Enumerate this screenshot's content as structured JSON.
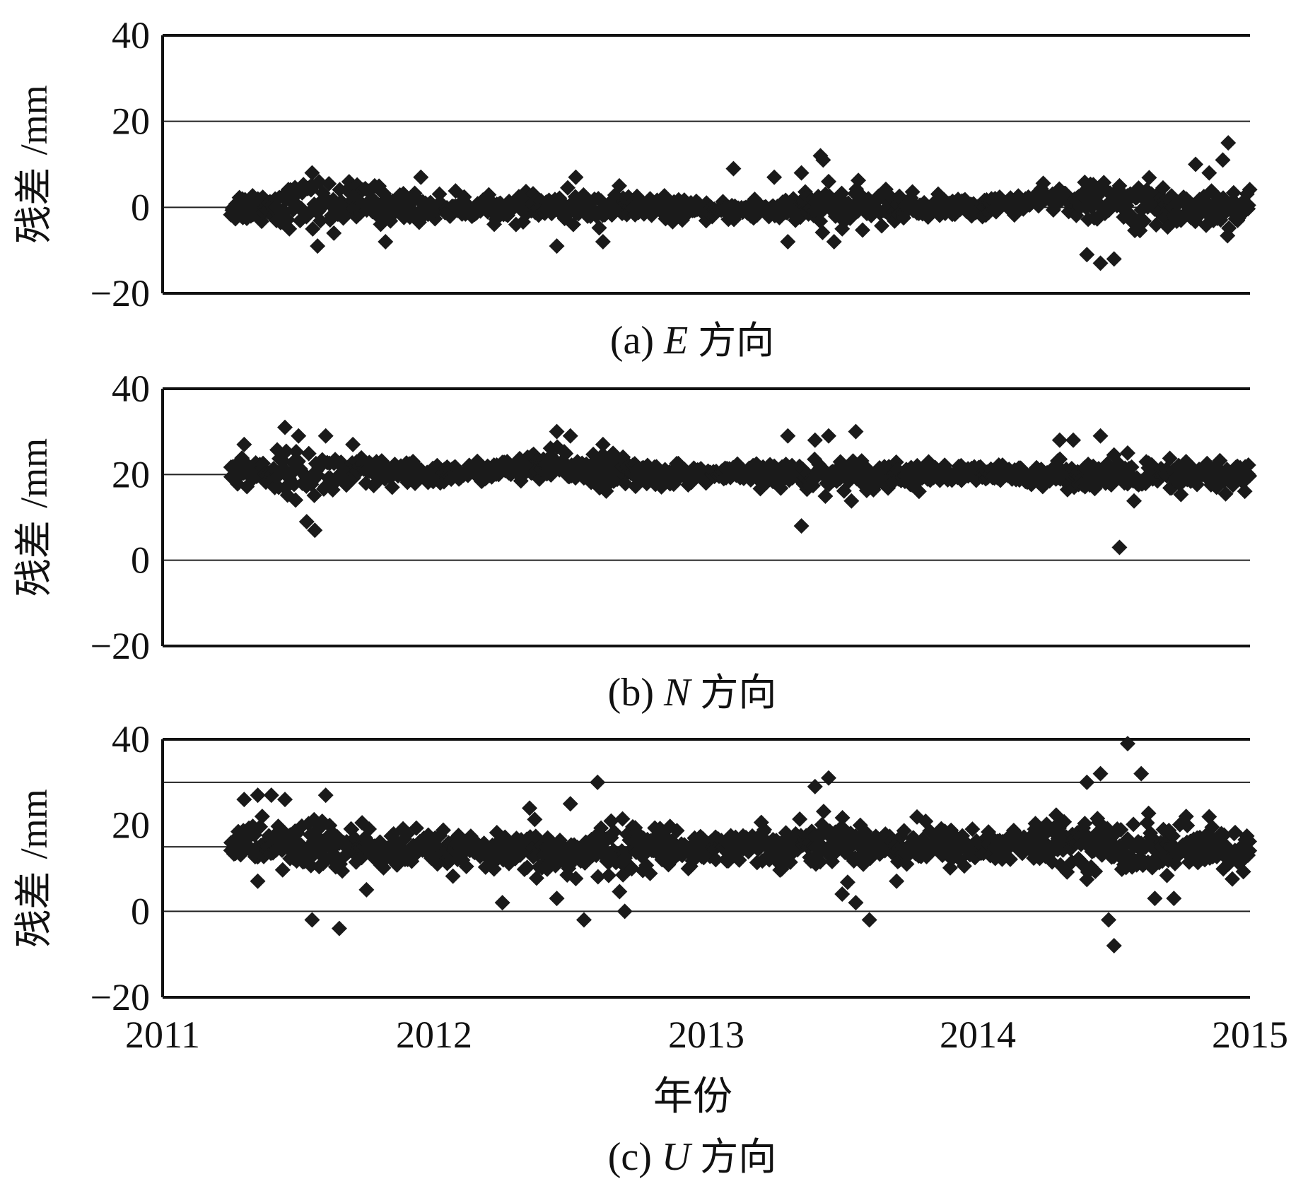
{
  "x_tick_labels": [
    "2011",
    "2012",
    "2013",
    "2014",
    "2015"
  ],
  "x_axis_title": "年份",
  "y_axis_title": "残差",
  "y_axis_unit": "/mm",
  "chart_data": [
    {
      "type": "scatter",
      "panel": "a",
      "caption": {
        "prefix": "(a) ",
        "symbol": "E",
        "suffix": "方向"
      },
      "ylabel": "残差 /mm",
      "xlabel": "",
      "xlim": [
        2011,
        2015
      ],
      "ylim": [
        -20,
        40
      ],
      "y_ticks": [
        "40",
        "20",
        "0",
        "−20"
      ],
      "gridlines_y": [
        0,
        20
      ],
      "marker": "diamond",
      "color": "#1a1a1a",
      "band": {
        "start": 2011.25,
        "end": 2015.0,
        "knots": [
          [
            2011.25,
            0
          ],
          [
            2011.6,
            1
          ],
          [
            2012.0,
            0
          ],
          [
            2012.5,
            0
          ],
          [
            2012.8,
            0
          ],
          [
            2013.0,
            -1
          ],
          [
            2013.5,
            0
          ],
          [
            2014.0,
            0
          ],
          [
            2014.3,
            2
          ],
          [
            2014.6,
            0
          ],
          [
            2015.0,
            0
          ]
        ],
        "spread": [
          [
            2011.25,
            3
          ],
          [
            2011.6,
            5
          ],
          [
            2011.9,
            3
          ],
          [
            2012.2,
            2
          ],
          [
            2012.5,
            3
          ],
          [
            2012.75,
            3
          ],
          [
            2013.0,
            1.5
          ],
          [
            2013.5,
            4
          ],
          [
            2013.9,
            2
          ],
          [
            2014.2,
            2
          ],
          [
            2014.6,
            5
          ],
          [
            2015.0,
            4
          ]
        ],
        "count": 900
      },
      "outliers": [
        [
          2011.55,
          8
        ],
        [
          2011.57,
          -9
        ],
        [
          2011.63,
          -6
        ],
        [
          2011.78,
          5
        ],
        [
          2011.82,
          -8
        ],
        [
          2011.95,
          7
        ],
        [
          2012.3,
          -4
        ],
        [
          2012.45,
          -9
        ],
        [
          2012.52,
          7
        ],
        [
          2012.62,
          -8
        ],
        [
          2012.68,
          5
        ],
        [
          2013.1,
          9
        ],
        [
          2013.25,
          7
        ],
        [
          2013.3,
          -8
        ],
        [
          2013.35,
          8
        ],
        [
          2013.42,
          12
        ],
        [
          2013.43,
          11
        ],
        [
          2013.45,
          6
        ],
        [
          2013.47,
          -8
        ],
        [
          2013.5,
          -5
        ],
        [
          2014.4,
          -11
        ],
        [
          2014.45,
          -13
        ],
        [
          2014.5,
          -12
        ],
        [
          2014.52,
          5
        ],
        [
          2014.62,
          4
        ],
        [
          2014.8,
          10
        ],
        [
          2014.85,
          8
        ],
        [
          2014.9,
          11
        ],
        [
          2014.92,
          15
        ]
      ]
    },
    {
      "type": "scatter",
      "panel": "b",
      "caption": {
        "prefix": "(b) ",
        "symbol": "N",
        "suffix": "方向"
      },
      "ylabel": "残差 /mm",
      "xlabel": "",
      "xlim": [
        2011,
        2015
      ],
      "ylim": [
        -20,
        40
      ],
      "y_ticks": [
        "40",
        "20",
        "0",
        "−20"
      ],
      "gridlines_y": [
        0,
        20
      ],
      "marker": "diamond",
      "color": "#1a1a1a",
      "band": {
        "start": 2011.25,
        "end": 2015.0,
        "knots": [
          [
            2011.25,
            21
          ],
          [
            2011.6,
            20
          ],
          [
            2012.0,
            20
          ],
          [
            2012.5,
            22
          ],
          [
            2012.8,
            20
          ],
          [
            2013.0,
            20
          ],
          [
            2013.5,
            20
          ],
          [
            2014.0,
            20
          ],
          [
            2014.3,
            20
          ],
          [
            2014.6,
            19
          ],
          [
            2015.0,
            20
          ]
        ],
        "spread": [
          [
            2011.25,
            3
          ],
          [
            2011.6,
            5
          ],
          [
            2011.9,
            2.5
          ],
          [
            2012.2,
            2
          ],
          [
            2012.5,
            4
          ],
          [
            2012.75,
            3
          ],
          [
            2013.0,
            1.5
          ],
          [
            2013.5,
            3.5
          ],
          [
            2013.9,
            2
          ],
          [
            2014.2,
            2
          ],
          [
            2014.6,
            4
          ],
          [
            2015.0,
            3
          ]
        ],
        "count": 900
      },
      "outliers": [
        [
          2011.3,
          27
        ],
        [
          2011.45,
          31
        ],
        [
          2011.5,
          29
        ],
        [
          2011.53,
          9
        ],
        [
          2011.56,
          7
        ],
        [
          2011.6,
          29
        ],
        [
          2011.7,
          27
        ],
        [
          2012.45,
          30
        ],
        [
          2012.5,
          29
        ],
        [
          2012.62,
          27
        ],
        [
          2013.3,
          29
        ],
        [
          2013.35,
          8
        ],
        [
          2013.4,
          28
        ],
        [
          2013.45,
          29
        ],
        [
          2013.55,
          30
        ],
        [
          2014.3,
          28
        ],
        [
          2014.35,
          28
        ],
        [
          2014.45,
          29
        ],
        [
          2014.52,
          3
        ],
        [
          2014.55,
          25
        ]
      ]
    },
    {
      "type": "scatter",
      "panel": "c",
      "caption": {
        "prefix": "(c) ",
        "symbol": "U",
        "suffix": "方向"
      },
      "ylabel": "残差 /mm",
      "xlabel": "年份",
      "xlim": [
        2011,
        2015
      ],
      "ylim": [
        -20,
        40
      ],
      "y_ticks": [
        "40",
        "20",
        "0",
        "−20"
      ],
      "gridlines_y": [
        0,
        15,
        30
      ],
      "marker": "diamond",
      "color": "#1a1a1a",
      "band": {
        "start": 2011.25,
        "end": 2015.0,
        "knots": [
          [
            2011.25,
            16
          ],
          [
            2011.6,
            15
          ],
          [
            2012.0,
            14
          ],
          [
            2012.5,
            13
          ],
          [
            2012.8,
            15
          ],
          [
            2013.0,
            15
          ],
          [
            2013.5,
            16
          ],
          [
            2014.0,
            15
          ],
          [
            2014.3,
            16
          ],
          [
            2014.6,
            15
          ],
          [
            2015.0,
            14
          ]
        ],
        "spread": [
          [
            2011.25,
            4
          ],
          [
            2011.6,
            6
          ],
          [
            2011.9,
            4
          ],
          [
            2012.2,
            3
          ],
          [
            2012.5,
            6
          ],
          [
            2012.75,
            5
          ],
          [
            2013.0,
            3
          ],
          [
            2013.5,
            5
          ],
          [
            2013.9,
            4
          ],
          [
            2014.2,
            4
          ],
          [
            2014.6,
            6
          ],
          [
            2015.0,
            4
          ]
        ],
        "count": 1000
      },
      "outliers": [
        [
          2011.3,
          26
        ],
        [
          2011.35,
          27
        ],
        [
          2011.4,
          27
        ],
        [
          2011.45,
          26
        ],
        [
          2011.6,
          27
        ],
        [
          2011.35,
          7
        ],
        [
          2011.55,
          -2
        ],
        [
          2011.65,
          -4
        ],
        [
          2011.75,
          5
        ],
        [
          2012.25,
          2
        ],
        [
          2012.35,
          24
        ],
        [
          2012.45,
          3
        ],
        [
          2012.5,
          25
        ],
        [
          2012.55,
          -2
        ],
        [
          2012.6,
          30
        ],
        [
          2012.65,
          21
        ],
        [
          2012.7,
          0
        ],
        [
          2013.4,
          29
        ],
        [
          2013.45,
          31
        ],
        [
          2013.5,
          4
        ],
        [
          2013.55,
          2
        ],
        [
          2013.6,
          -2
        ],
        [
          2013.7,
          7
        ],
        [
          2014.4,
          30
        ],
        [
          2014.45,
          32
        ],
        [
          2014.48,
          -2
        ],
        [
          2014.5,
          -8
        ],
        [
          2014.55,
          39
        ],
        [
          2014.6,
          32
        ],
        [
          2014.65,
          3
        ],
        [
          2014.72,
          3
        ],
        [
          2014.85,
          22
        ]
      ]
    }
  ]
}
